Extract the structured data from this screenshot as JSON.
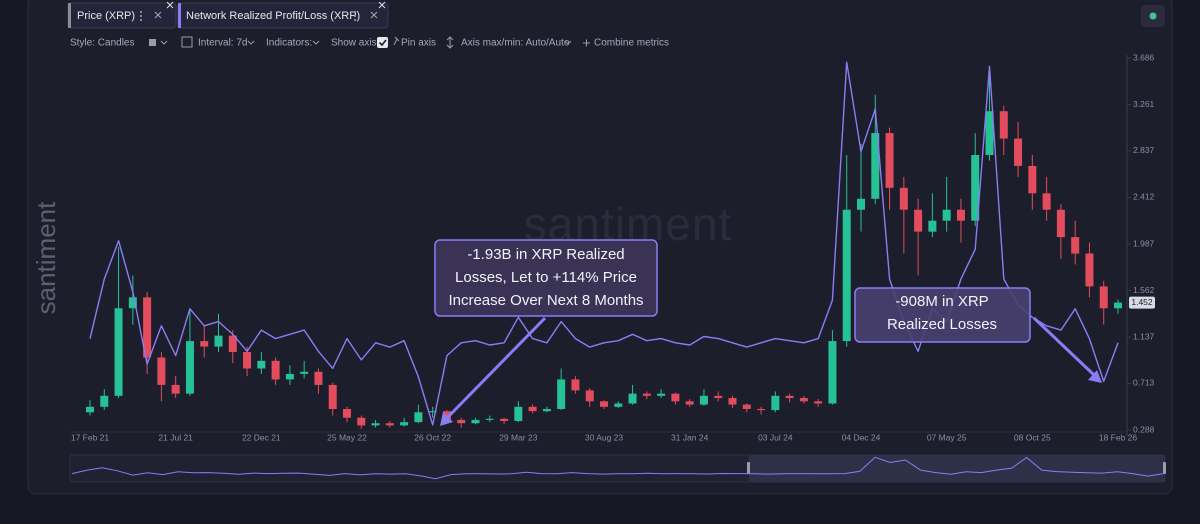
{
  "toolbar": {
    "style": "Style: Candles",
    "interval": "Interval: 7d",
    "indicators": "Indicators:",
    "show_axis": "Show axis",
    "pin_axis": "Pin axis",
    "axis_minmax": "Axis max/min: Auto/Auto",
    "combine": "Combine metrics"
  },
  "watermark": "santiment",
  "chart_data": {
    "type": "candlestick",
    "categories": [
      "17 Feb 21",
      null,
      null,
      null,
      null,
      null,
      "21 Jul 21",
      null,
      null,
      null,
      null,
      null,
      "22 Dec 21",
      null,
      null,
      null,
      null,
      null,
      "25 May 22",
      null,
      null,
      null,
      null,
      null,
      "26 Oct 22",
      null,
      null,
      null,
      null,
      null,
      "29 Mar 23",
      null,
      null,
      null,
      null,
      null,
      "30 Aug 23",
      null,
      null,
      null,
      null,
      null,
      "31 Jan 24",
      null,
      null,
      null,
      null,
      null,
      "03 Jul 24",
      null,
      null,
      null,
      null,
      null,
      "04 Dec 24",
      null,
      null,
      null,
      null,
      null,
      "07 May 25",
      null,
      null,
      null,
      null,
      null,
      "08 Oct 25",
      null,
      null,
      null,
      null,
      null,
      "18 Feb 26"
    ],
    "series": [
      {
        "name": "Price (XRP)",
        "type": "candlestick",
        "up_color": "#26c195",
        "down_color": "#e24c5c",
        "open": [
          0.45,
          0.5,
          0.6,
          1.4,
          1.5,
          0.95,
          0.7,
          0.62,
          1.1,
          1.05,
          1.15,
          1.0,
          0.85,
          0.92,
          0.75,
          0.8,
          0.82,
          0.7,
          0.48,
          0.4,
          0.33,
          0.35,
          0.33,
          0.36,
          0.45,
          0.46,
          0.38,
          0.35,
          0.38,
          0.39,
          0.37,
          0.5,
          0.46,
          0.48,
          0.75,
          0.65,
          0.55,
          0.5,
          0.53,
          0.62,
          0.6,
          0.62,
          0.55,
          0.52,
          0.6,
          0.58,
          0.52,
          0.48,
          0.47,
          0.6,
          0.58,
          0.55,
          0.53,
          1.1,
          2.3,
          2.4,
          3.0,
          2.5,
          2.3,
          2.1,
          2.2,
          2.3,
          2.2,
          2.8,
          3.2,
          2.95,
          2.7,
          2.45,
          2.3,
          2.05,
          1.9,
          1.6,
          1.4
        ],
        "high": [
          0.56,
          0.66,
          1.96,
          1.7,
          1.55,
          1.0,
          0.78,
          1.4,
          1.25,
          1.35,
          1.2,
          1.05,
          1.0,
          0.95,
          0.88,
          0.92,
          0.85,
          0.72,
          0.5,
          0.42,
          0.38,
          0.37,
          0.4,
          0.52,
          0.5,
          0.47,
          0.4,
          0.4,
          0.42,
          0.4,
          0.55,
          0.52,
          0.5,
          0.85,
          0.78,
          0.67,
          0.56,
          0.55,
          0.7,
          0.64,
          0.66,
          0.63,
          0.57,
          0.66,
          0.64,
          0.6,
          0.53,
          0.5,
          0.64,
          0.62,
          0.6,
          0.57,
          1.2,
          2.8,
          2.9,
          3.35,
          3.05,
          2.6,
          2.4,
          2.45,
          2.6,
          2.4,
          3.0,
          3.6,
          3.25,
          3.1,
          2.8,
          2.6,
          2.35,
          2.2,
          2.0,
          1.65,
          1.48
        ],
        "low": [
          0.42,
          0.47,
          0.58,
          1.25,
          0.8,
          0.55,
          0.58,
          0.6,
          0.95,
          1.0,
          0.9,
          0.78,
          0.8,
          0.7,
          0.7,
          0.76,
          0.62,
          0.42,
          0.36,
          0.3,
          0.31,
          0.31,
          0.32,
          0.35,
          0.4,
          0.36,
          0.31,
          0.34,
          0.36,
          0.34,
          0.36,
          0.44,
          0.45,
          0.47,
          0.62,
          0.5,
          0.48,
          0.49,
          0.52,
          0.57,
          0.58,
          0.52,
          0.5,
          0.51,
          0.55,
          0.49,
          0.45,
          0.43,
          0.45,
          0.54,
          0.53,
          0.5,
          0.52,
          1.05,
          2.1,
          2.35,
          2.3,
          1.9,
          1.7,
          2.05,
          2.1,
          2.0,
          2.15,
          2.75,
          2.8,
          2.6,
          2.3,
          2.2,
          1.85,
          1.8,
          1.5,
          1.25,
          1.35
        ],
        "close": [
          0.5,
          0.6,
          1.4,
          1.5,
          0.95,
          0.7,
          0.62,
          1.1,
          1.05,
          1.15,
          1.0,
          0.85,
          0.92,
          0.75,
          0.8,
          0.82,
          0.7,
          0.48,
          0.4,
          0.33,
          0.35,
          0.33,
          0.36,
          0.45,
          0.46,
          0.38,
          0.35,
          0.38,
          0.39,
          0.37,
          0.5,
          0.46,
          0.48,
          0.75,
          0.65,
          0.55,
          0.5,
          0.53,
          0.62,
          0.6,
          0.62,
          0.55,
          0.52,
          0.6,
          0.58,
          0.52,
          0.48,
          0.47,
          0.6,
          0.58,
          0.55,
          0.53,
          1.1,
          2.3,
          2.4,
          3.0,
          2.5,
          2.3,
          2.1,
          2.2,
          2.3,
          2.2,
          2.8,
          3.2,
          2.95,
          2.7,
          2.45,
          2.3,
          2.05,
          1.9,
          1.6,
          1.4,
          1.452
        ]
      },
      {
        "name": "Network Realized Profit/Loss (XRP)",
        "type": "line",
        "color": "#8b7cf6",
        "axis": "y2",
        "values": [
          0.1,
          1.5,
          2.4,
          1.2,
          -0.5,
          0.4,
          -0.3,
          0.8,
          0.4,
          0.5,
          0.2,
          -0.2,
          0.3,
          0.1,
          0.2,
          0.3,
          -0.2,
          -0.6,
          0.1,
          -0.4,
          0.0,
          -0.1,
          0.05,
          -0.8,
          -1.93,
          -0.3,
          0.0,
          0.05,
          -0.05,
          0.0,
          0.6,
          0.1,
          0.0,
          0.5,
          0.1,
          -0.1,
          0.0,
          0.05,
          0.2,
          0.05,
          0.1,
          0.0,
          -0.05,
          0.15,
          0.1,
          0.0,
          -0.1,
          0.0,
          0.1,
          0.05,
          0.0,
          0.1,
          1.0,
          6.6,
          4.5,
          5.5,
          1.5,
          0.5,
          -0.2,
          0.8,
          0.5,
          1.5,
          2.2,
          6.5,
          1.5,
          0.9,
          0.6,
          0.4,
          0.3,
          0.8,
          0.1,
          -0.908,
          0.0
        ]
      }
    ],
    "ylim": [
      0.288,
      3.686
    ],
    "yticks": [
      0.288,
      0.713,
      1.137,
      1.562,
      1.987,
      2.412,
      2.837,
      3.261,
      3.686
    ],
    "y2lim": [
      -2.05,
      6.7
    ],
    "annotations": [
      {
        "lines": [
          "-1.93B in XRP Realized",
          "Losses, Let to +114% Price",
          "Increase Over Next 8 Months"
        ]
      },
      {
        "lines": [
          "-908M in XRP",
          "Realized Losses"
        ]
      }
    ]
  }
}
